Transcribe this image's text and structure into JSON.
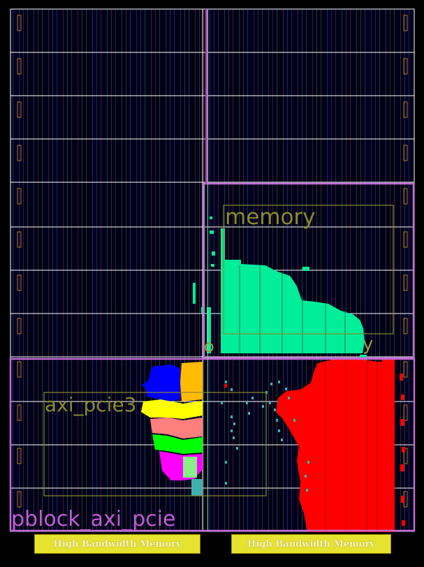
{
  "title": "",
  "pblocks": [
    {
      "id": "memory",
      "label": "memory"
    },
    {
      "id": "axi_pcie3",
      "label": "axi_pcie3"
    },
    {
      "id": "axi_pcie",
      "label": "pblock_axi_pcie"
    }
  ],
  "fragments": {
    "left": "o",
    "right": "y"
  },
  "hbm": {
    "left": "High Bandwidth Memory",
    "right": "High Bandwidth Memory"
  },
  "colors": {
    "background": "#00001a",
    "grid": "#ffffff",
    "pblock_border": "#c36ad6",
    "pblock_inner": "#8a8a2a",
    "memory_cells": "#00ee99",
    "pcie_cells_primary": "#ff0000",
    "hbm_fill": "#e6e330"
  },
  "cell_clusters": [
    {
      "name": "memory-cells",
      "color": "#00ee99"
    },
    {
      "name": "blue-cells",
      "color": "#0000ff"
    },
    {
      "name": "orange-cells",
      "color": "#ffbb00"
    },
    {
      "name": "yellow-cells",
      "color": "#ffff00"
    },
    {
      "name": "salmon-cells",
      "color": "#ff7f7f"
    },
    {
      "name": "green-cells",
      "color": "#00ff00"
    },
    {
      "name": "magenta-cells",
      "color": "#ff00ff"
    },
    {
      "name": "red-cells",
      "color": "#ff0000"
    }
  ]
}
